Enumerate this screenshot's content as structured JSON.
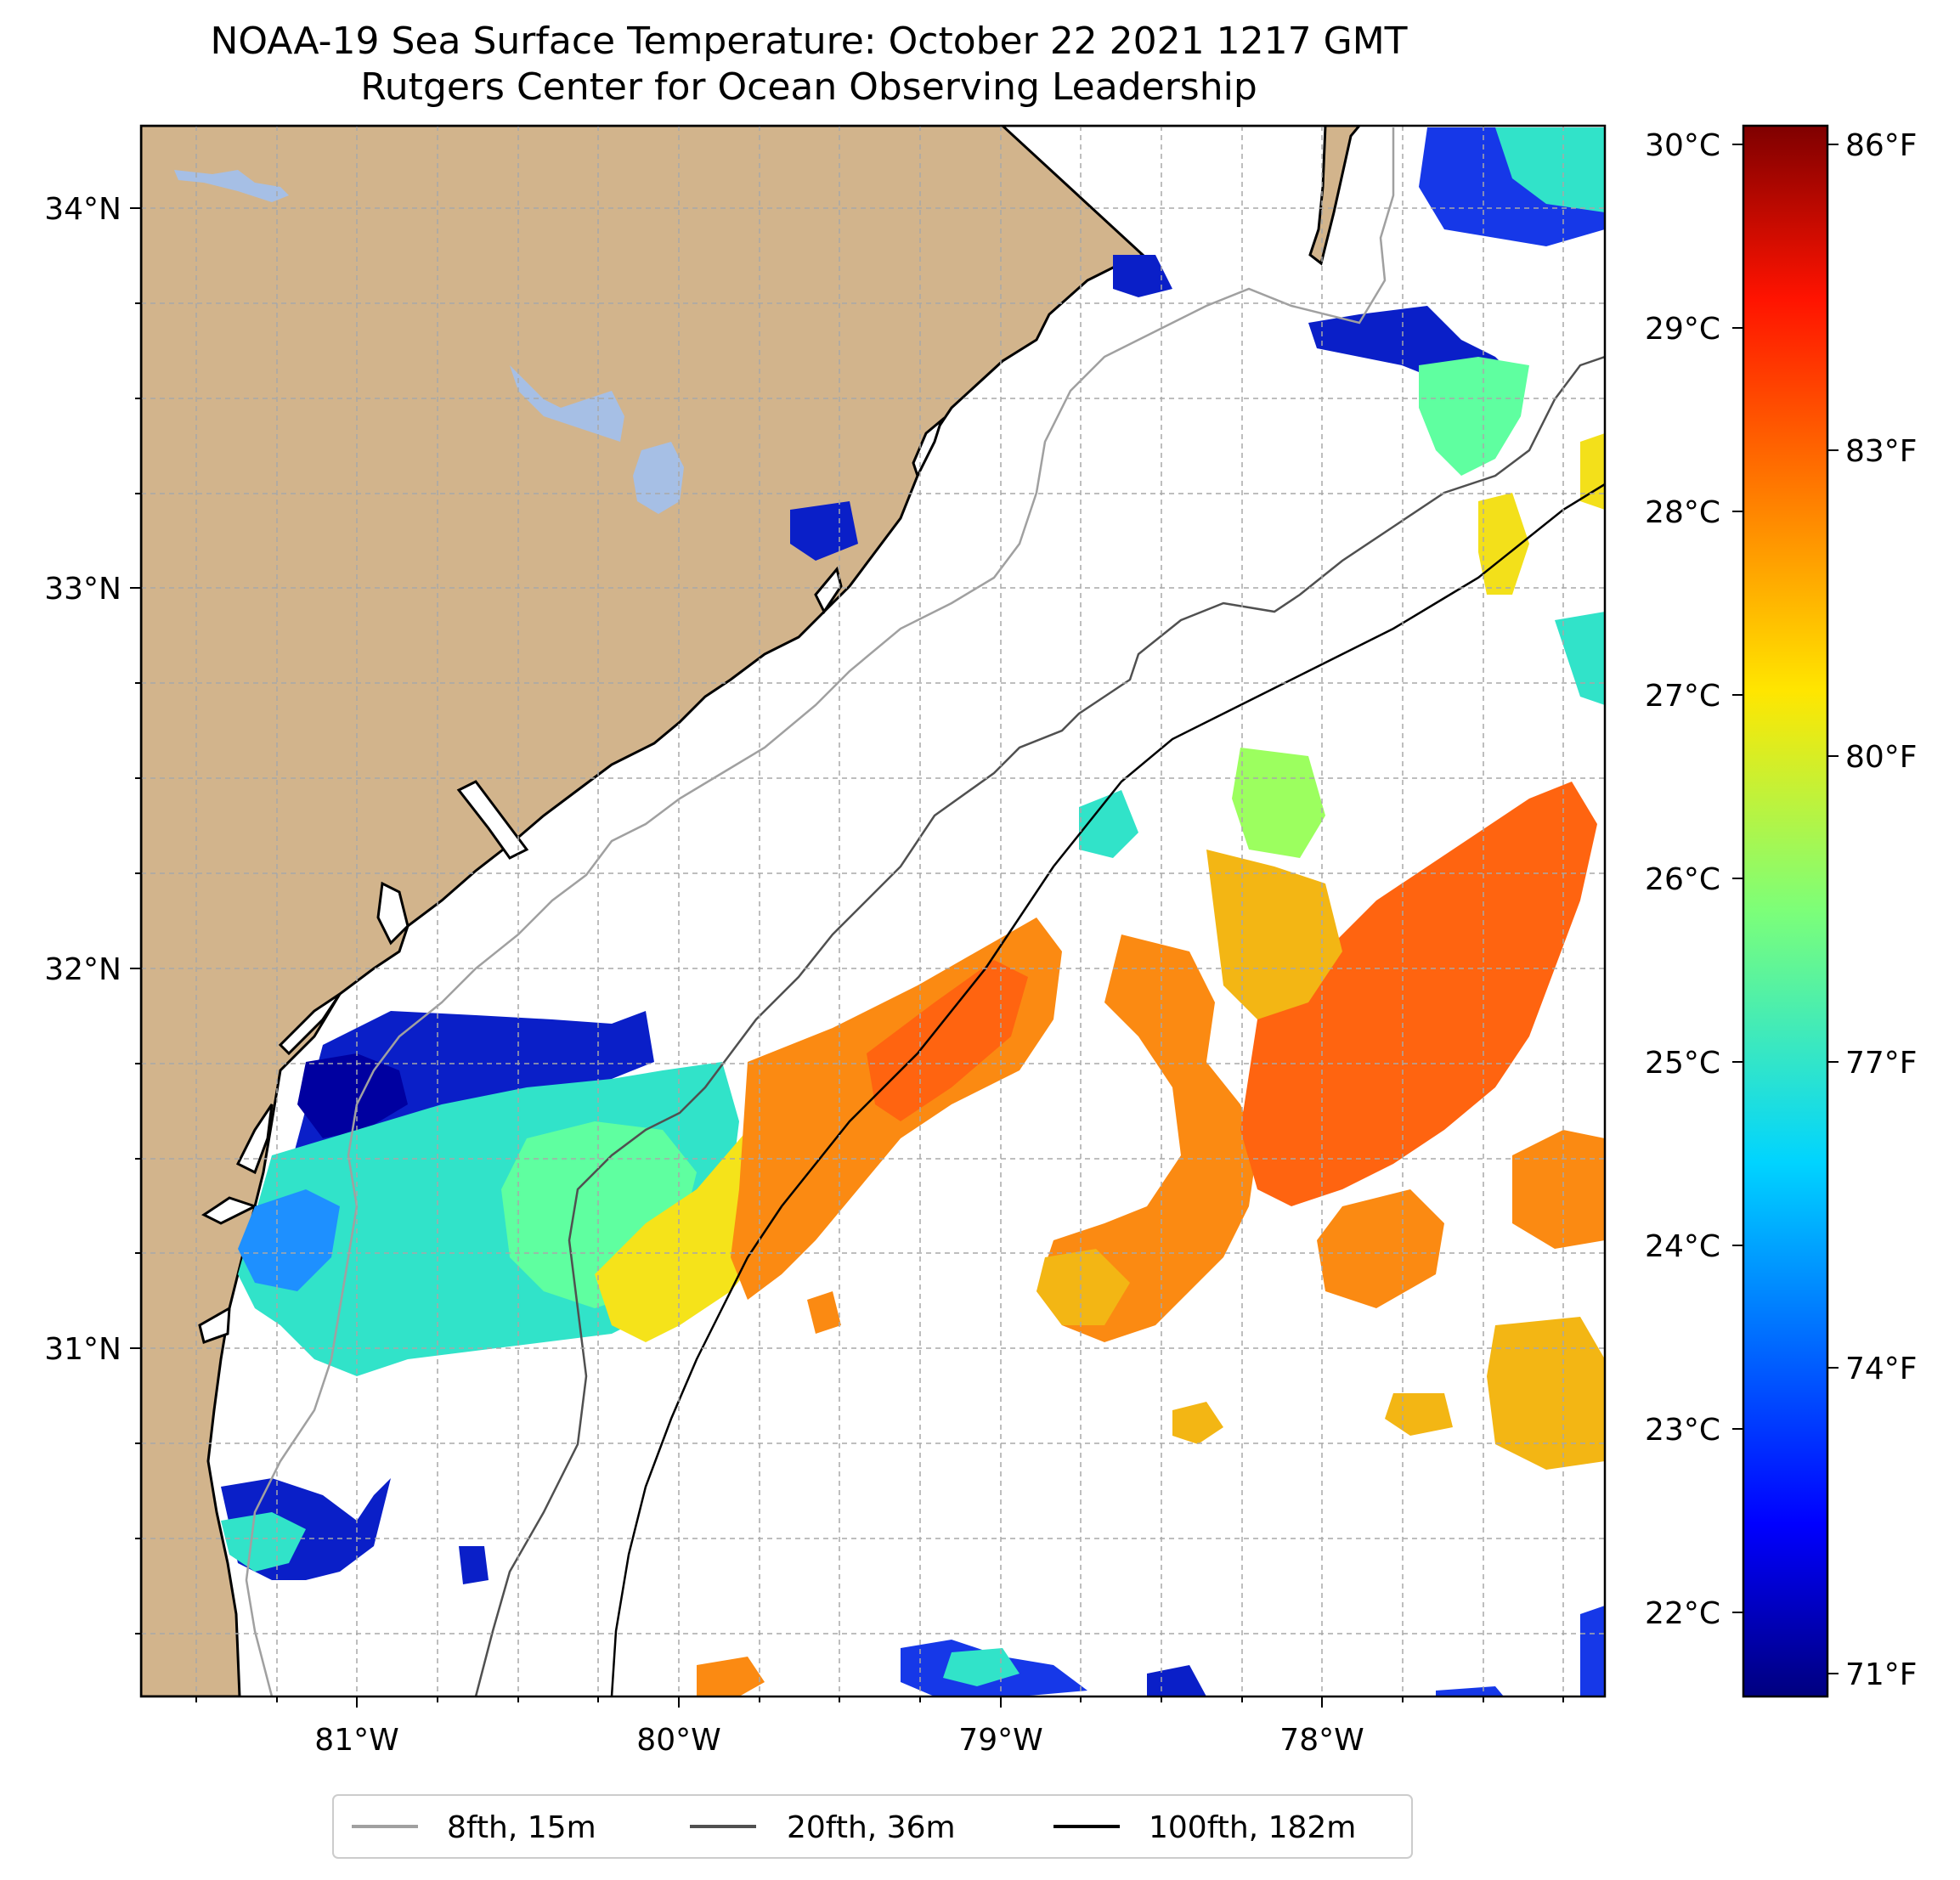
{
  "title": {
    "line1": "NOAA-19 Sea Surface Temperature: October 22 2021 1217 GMT",
    "line2": "Rutgers Center for Ocean Observing Leadership"
  },
  "map": {
    "lon_ticks": [
      "81°W",
      "80°W",
      "79°W",
      "78°W"
    ],
    "lat_ticks": [
      "34°N",
      "33°N",
      "32°N",
      "31°N"
    ],
    "land_color": "#d2b48c",
    "lake_color": "#a6bfe5",
    "gridlines": true
  },
  "colorbar": {
    "celsius_ticks": [
      "30°C",
      "29°C",
      "28°C",
      "27°C",
      "26°C",
      "25°C",
      "24°C",
      "23°C",
      "22°C"
    ],
    "fahrenheit_ticks": [
      "86°F",
      "83°F",
      "80°F",
      "77°F",
      "74°F",
      "71°F"
    ],
    "colormap": "jet",
    "range_c": [
      21.7,
      30.2
    ]
  },
  "legend": {
    "items": [
      {
        "label": "8fth, 15m",
        "color": "#a0a0a0"
      },
      {
        "label": "20fth, 36m",
        "color": "#505050"
      },
      {
        "label": "100fth, 182m",
        "color": "#000000"
      }
    ]
  }
}
